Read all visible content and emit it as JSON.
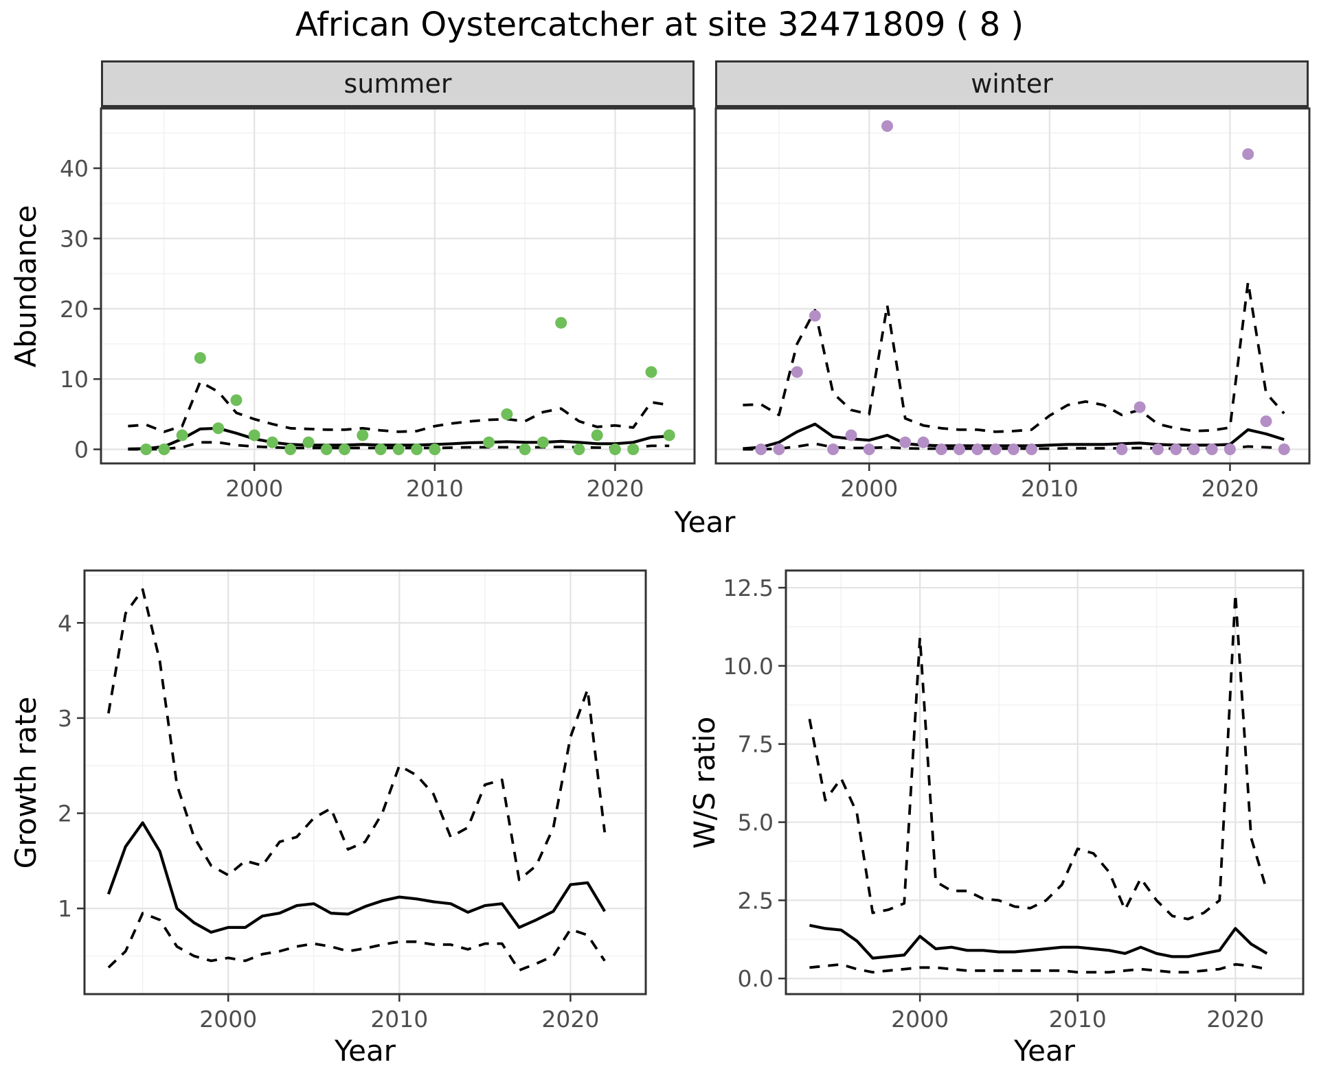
{
  "title": "African Oystercatcher at site 32471809 ( 8 )",
  "facets": [
    {
      "label": "summer"
    },
    {
      "label": "winter"
    }
  ],
  "axis_titles": {
    "year": "Year",
    "abundance": "Abundance",
    "growth_rate": "Growth rate",
    "ws_ratio": "W/S ratio"
  },
  "colors": {
    "summer_point": "#6EBE59",
    "winter_point": "#B38FC6",
    "line": "#000000",
    "panel_border": "#333333",
    "grid_major": "#e3e3e3",
    "grid_minor": "#f0f0f0",
    "tick_label": "#4d4d4d",
    "strip_bg": "#d5d5d5"
  },
  "chart_data": [
    {
      "id": "abundance-summer",
      "type": "scatter",
      "facet_label": "summer",
      "xlabel": "Year",
      "ylabel": "Abundance",
      "x": {
        "lim": [
          1991.5,
          2024.4
        ],
        "ticks": [
          2000,
          2010,
          2020
        ],
        "tick_labels": [
          "2000",
          "2010",
          "2020"
        ],
        "minor": [
          1995,
          2005,
          2015
        ]
      },
      "y": {
        "lim": [
          -2.0,
          48.5
        ],
        "ticks": [
          0,
          10,
          20,
          30,
          40
        ],
        "tick_labels": [
          "0",
          "10",
          "20",
          "30",
          "40"
        ],
        "minor": [
          5,
          15,
          25,
          35,
          45
        ],
        "show_labels": true
      },
      "points": {
        "years": [
          1994,
          1995,
          1996,
          1997,
          1998,
          1999,
          2000,
          2001,
          2002,
          2003,
          2004,
          2005,
          2006,
          2007,
          2008,
          2009,
          2010,
          2013,
          2014,
          2015,
          2016,
          2017,
          2018,
          2019,
          2020,
          2021,
          2022,
          2023
        ],
        "values": [
          0,
          0,
          2,
          13,
          3,
          7,
          2,
          1,
          0,
          1,
          0,
          0,
          2,
          0,
          0,
          0,
          0,
          1,
          5,
          0,
          1,
          18,
          0,
          2,
          0,
          0,
          11,
          2
        ]
      },
      "line_years": [
        1993,
        1994,
        1995,
        1996,
        1997,
        1998,
        1999,
        2000,
        2001,
        2002,
        2003,
        2004,
        2005,
        2006,
        2007,
        2008,
        2009,
        2010,
        2011,
        2012,
        2013,
        2014,
        2015,
        2016,
        2017,
        2018,
        2019,
        2020,
        2021,
        2022,
        2023
      ],
      "series": [
        {
          "name": "median",
          "style": "solid",
          "values": [
            0.05,
            0.1,
            0.4,
            1.5,
            2.9,
            3.0,
            2.3,
            1.5,
            1.0,
            0.7,
            0.6,
            0.6,
            0.6,
            0.7,
            0.6,
            0.6,
            0.6,
            0.7,
            0.8,
            0.95,
            1.0,
            1.1,
            1.0,
            1.0,
            1.15,
            1.0,
            0.8,
            0.8,
            1.0,
            1.7,
            1.9
          ]
        },
        {
          "name": "upper-ci",
          "style": "dashed",
          "values": [
            3.3,
            3.5,
            2.5,
            3.3,
            9.6,
            8.2,
            5.2,
            4.3,
            3.6,
            3.0,
            2.9,
            2.8,
            2.8,
            3.0,
            2.7,
            2.5,
            2.6,
            3.3,
            3.7,
            4.0,
            4.2,
            4.3,
            4.0,
            5.3,
            5.8,
            4.0,
            3.2,
            3.4,
            3.1,
            6.7,
            6.3
          ]
        },
        {
          "name": "lower-ci",
          "style": "dashed",
          "values": [
            0.0,
            0.0,
            0.05,
            0.3,
            1.0,
            1.0,
            0.6,
            0.4,
            0.3,
            0.2,
            0.2,
            0.2,
            0.2,
            0.2,
            0.2,
            0.2,
            0.2,
            0.2,
            0.25,
            0.3,
            0.3,
            0.3,
            0.3,
            0.3,
            0.35,
            0.3,
            0.25,
            0.25,
            0.3,
            0.5,
            0.5
          ]
        }
      ],
      "point_color": "#6EBE59"
    },
    {
      "id": "abundance-winter",
      "type": "scatter",
      "facet_label": "winter",
      "xlabel": "Year",
      "ylabel": "Abundance",
      "x": {
        "lim": [
          1991.5,
          2024.4
        ],
        "ticks": [
          2000,
          2010,
          2020
        ],
        "tick_labels": [
          "2000",
          "2010",
          "2020"
        ],
        "minor": [
          1995,
          2005,
          2015
        ]
      },
      "y": {
        "lim": [
          -2.0,
          48.5
        ],
        "ticks": [
          0,
          10,
          20,
          30,
          40
        ],
        "tick_labels": [
          "0",
          "10",
          "20",
          "30",
          "40"
        ],
        "minor": [
          5,
          15,
          25,
          35,
          45
        ],
        "show_labels": false
      },
      "points": {
        "years": [
          1994,
          1995,
          1996,
          1997,
          1998,
          1999,
          2000,
          2001,
          2002,
          2003,
          2004,
          2005,
          2006,
          2007,
          2008,
          2009,
          2014,
          2015,
          2016,
          2017,
          2018,
          2019,
          2020,
          2021,
          2022,
          2023
        ],
        "values": [
          0,
          0,
          11,
          19,
          0,
          2,
          0,
          46,
          1,
          1,
          0,
          0,
          0,
          0,
          0,
          0,
          0,
          6,
          0,
          0,
          0,
          0,
          0,
          42,
          4,
          0
        ]
      },
      "line_years": [
        1993,
        1994,
        1995,
        1996,
        1997,
        1998,
        1999,
        2000,
        2001,
        2002,
        2003,
        2004,
        2005,
        2006,
        2007,
        2008,
        2009,
        2010,
        2011,
        2012,
        2013,
        2014,
        2015,
        2016,
        2017,
        2018,
        2019,
        2020,
        2021,
        2022,
        2023
      ],
      "series": [
        {
          "name": "median",
          "style": "solid",
          "values": [
            0.1,
            0.3,
            1.0,
            2.5,
            3.6,
            1.8,
            1.5,
            1.3,
            2.0,
            0.8,
            0.6,
            0.5,
            0.5,
            0.5,
            0.5,
            0.5,
            0.5,
            0.6,
            0.7,
            0.7,
            0.7,
            0.8,
            0.9,
            0.7,
            0.6,
            0.6,
            0.6,
            0.7,
            2.8,
            2.2,
            1.4
          ]
        },
        {
          "name": "upper-ci",
          "style": "dashed",
          "values": [
            6.3,
            6.4,
            4.9,
            15.0,
            19.8,
            8.0,
            5.6,
            5.0,
            20.5,
            4.4,
            3.4,
            3.0,
            2.8,
            2.8,
            2.5,
            2.6,
            2.8,
            4.8,
            6.3,
            6.8,
            6.3,
            4.9,
            5.6,
            3.6,
            3.0,
            2.6,
            2.7,
            3.1,
            23.8,
            8.0,
            5.1
          ]
        },
        {
          "name": "lower-ci",
          "style": "dashed",
          "values": [
            0.0,
            0.0,
            0.1,
            0.4,
            0.8,
            0.3,
            0.2,
            0.2,
            0.3,
            0.15,
            0.1,
            0.1,
            0.1,
            0.1,
            0.1,
            0.1,
            0.1,
            0.1,
            0.15,
            0.15,
            0.15,
            0.15,
            0.2,
            0.15,
            0.1,
            0.1,
            0.1,
            0.15,
            0.4,
            0.3,
            0.2
          ]
        }
      ],
      "point_color": "#B38FC6"
    },
    {
      "id": "growth-rate",
      "type": "line",
      "xlabel": "Year",
      "ylabel": "Growth rate",
      "x": {
        "lim": [
          1991.6,
          2024.4
        ],
        "ticks": [
          2000,
          2010,
          2020
        ],
        "tick_labels": [
          "2000",
          "2010",
          "2020"
        ],
        "minor": [
          1995,
          2005,
          2015
        ]
      },
      "y": {
        "lim": [
          0.1,
          4.55
        ],
        "ticks": [
          1,
          2,
          3,
          4
        ],
        "tick_labels": [
          "1",
          "2",
          "3",
          "4"
        ],
        "minor": [
          0.5,
          1.5,
          2.5,
          3.5,
          4.5
        ],
        "show_labels": true
      },
      "line_years": [
        1993,
        1994,
        1995,
        1996,
        1997,
        1998,
        1999,
        2000,
        2001,
        2002,
        2003,
        2004,
        2005,
        2006,
        2007,
        2008,
        2009,
        2010,
        2011,
        2012,
        2013,
        2014,
        2015,
        2016,
        2017,
        2018,
        2019,
        2020,
        2021,
        2022
      ],
      "series": [
        {
          "name": "median",
          "style": "solid",
          "values": [
            1.15,
            1.65,
            1.9,
            1.6,
            1.0,
            0.85,
            0.75,
            0.8,
            0.8,
            0.92,
            0.95,
            1.03,
            1.05,
            0.95,
            0.94,
            1.02,
            1.08,
            1.12,
            1.1,
            1.07,
            1.05,
            0.96,
            1.03,
            1.05,
            0.8,
            0.88,
            0.97,
            1.25,
            1.27,
            0.97
          ]
        },
        {
          "name": "upper-ci",
          "style": "dashed",
          "values": [
            3.05,
            4.1,
            4.35,
            3.6,
            2.3,
            1.75,
            1.45,
            1.35,
            1.5,
            1.45,
            1.7,
            1.75,
            1.95,
            2.05,
            1.62,
            1.7,
            2.0,
            2.5,
            2.4,
            2.2,
            1.75,
            1.85,
            2.3,
            2.35,
            1.3,
            1.45,
            1.85,
            2.8,
            3.3,
            1.8
          ]
        },
        {
          "name": "lower-ci",
          "style": "dashed",
          "values": [
            0.38,
            0.55,
            0.95,
            0.88,
            0.6,
            0.5,
            0.45,
            0.48,
            0.45,
            0.52,
            0.55,
            0.6,
            0.63,
            0.6,
            0.55,
            0.58,
            0.62,
            0.65,
            0.65,
            0.62,
            0.62,
            0.57,
            0.63,
            0.63,
            0.35,
            0.42,
            0.5,
            0.78,
            0.72,
            0.45
          ]
        }
      ]
    },
    {
      "id": "ws-ratio",
      "type": "line",
      "xlabel": "Year",
      "ylabel": "W/S ratio",
      "x": {
        "lim": [
          1991.5,
          2024.3
        ],
        "ticks": [
          2000,
          2010,
          2020
        ],
        "tick_labels": [
          "2000",
          "2010",
          "2020"
        ],
        "minor": [
          1995,
          2005,
          2015
        ]
      },
      "y": {
        "lim": [
          -0.5,
          13.05
        ],
        "ticks": [
          0.0,
          2.5,
          5.0,
          7.5,
          10.0,
          12.5
        ],
        "tick_labels": [
          "0.0",
          "2.5",
          "5.0",
          "7.5",
          "10.0",
          "12.5"
        ],
        "minor": [
          1.25,
          3.75,
          6.25,
          8.75,
          11.25
        ],
        "show_labels": true
      },
      "line_years": [
        1993,
        1994,
        1995,
        1996,
        1997,
        1998,
        1999,
        2000,
        2001,
        2002,
        2003,
        2004,
        2005,
        2006,
        2007,
        2008,
        2009,
        2010,
        2011,
        2012,
        2013,
        2014,
        2015,
        2016,
        2017,
        2018,
        2019,
        2020,
        2021,
        2022
      ],
      "series": [
        {
          "name": "median",
          "style": "solid",
          "values": [
            1.7,
            1.6,
            1.55,
            1.2,
            0.65,
            0.7,
            0.75,
            1.35,
            0.95,
            1.0,
            0.9,
            0.9,
            0.85,
            0.85,
            0.9,
            0.95,
            1.0,
            1.0,
            0.95,
            0.9,
            0.8,
            1.0,
            0.8,
            0.7,
            0.7,
            0.8,
            0.9,
            1.6,
            1.1,
            0.8
          ]
        },
        {
          "name": "upper-ci",
          "style": "dashed",
          "values": [
            8.3,
            5.7,
            6.4,
            5.3,
            2.1,
            2.2,
            2.4,
            10.9,
            3.1,
            2.8,
            2.8,
            2.55,
            2.5,
            2.3,
            2.25,
            2.5,
            3.0,
            4.15,
            4.0,
            3.4,
            2.2,
            3.2,
            2.5,
            2.0,
            1.9,
            2.1,
            2.5,
            12.3,
            4.5,
            2.8
          ]
        },
        {
          "name": "lower-ci",
          "style": "dashed",
          "values": [
            0.35,
            0.4,
            0.45,
            0.3,
            0.2,
            0.25,
            0.3,
            0.35,
            0.35,
            0.3,
            0.25,
            0.25,
            0.25,
            0.25,
            0.25,
            0.25,
            0.25,
            0.2,
            0.2,
            0.2,
            0.25,
            0.3,
            0.25,
            0.2,
            0.2,
            0.25,
            0.3,
            0.45,
            0.4,
            0.3
          ]
        }
      ]
    }
  ]
}
